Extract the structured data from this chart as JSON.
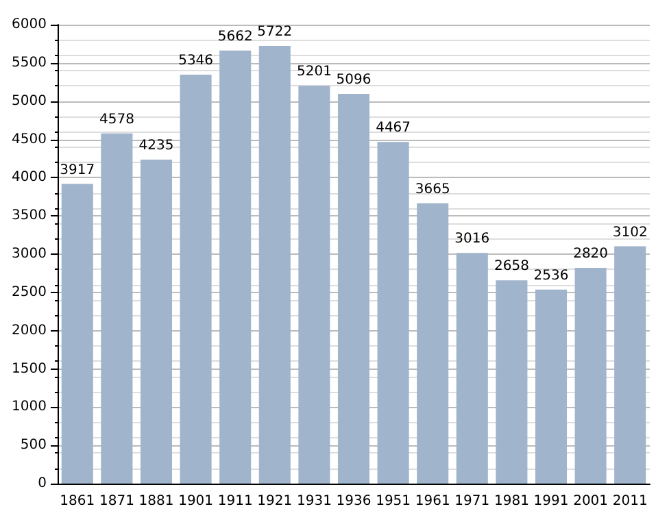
{
  "chart_data": {
    "type": "bar",
    "categories": [
      "1861",
      "1871",
      "1881",
      "1901",
      "1911",
      "1921",
      "1931",
      "1936",
      "1951",
      "1961",
      "1971",
      "1981",
      "1991",
      "2001",
      "2011"
    ],
    "values": [
      3917,
      4578,
      4235,
      5346,
      5662,
      5722,
      5201,
      5096,
      4467,
      3665,
      3016,
      2658,
      2536,
      2820,
      3102
    ],
    "color": "#a0b4cc",
    "ylim": [
      0,
      6000
    ],
    "yticks": [
      0,
      500,
      1000,
      1500,
      2000,
      2500,
      3000,
      3500,
      4000,
      4500,
      5000,
      5500,
      6000
    ],
    "grid": "y",
    "data_labels": true
  }
}
